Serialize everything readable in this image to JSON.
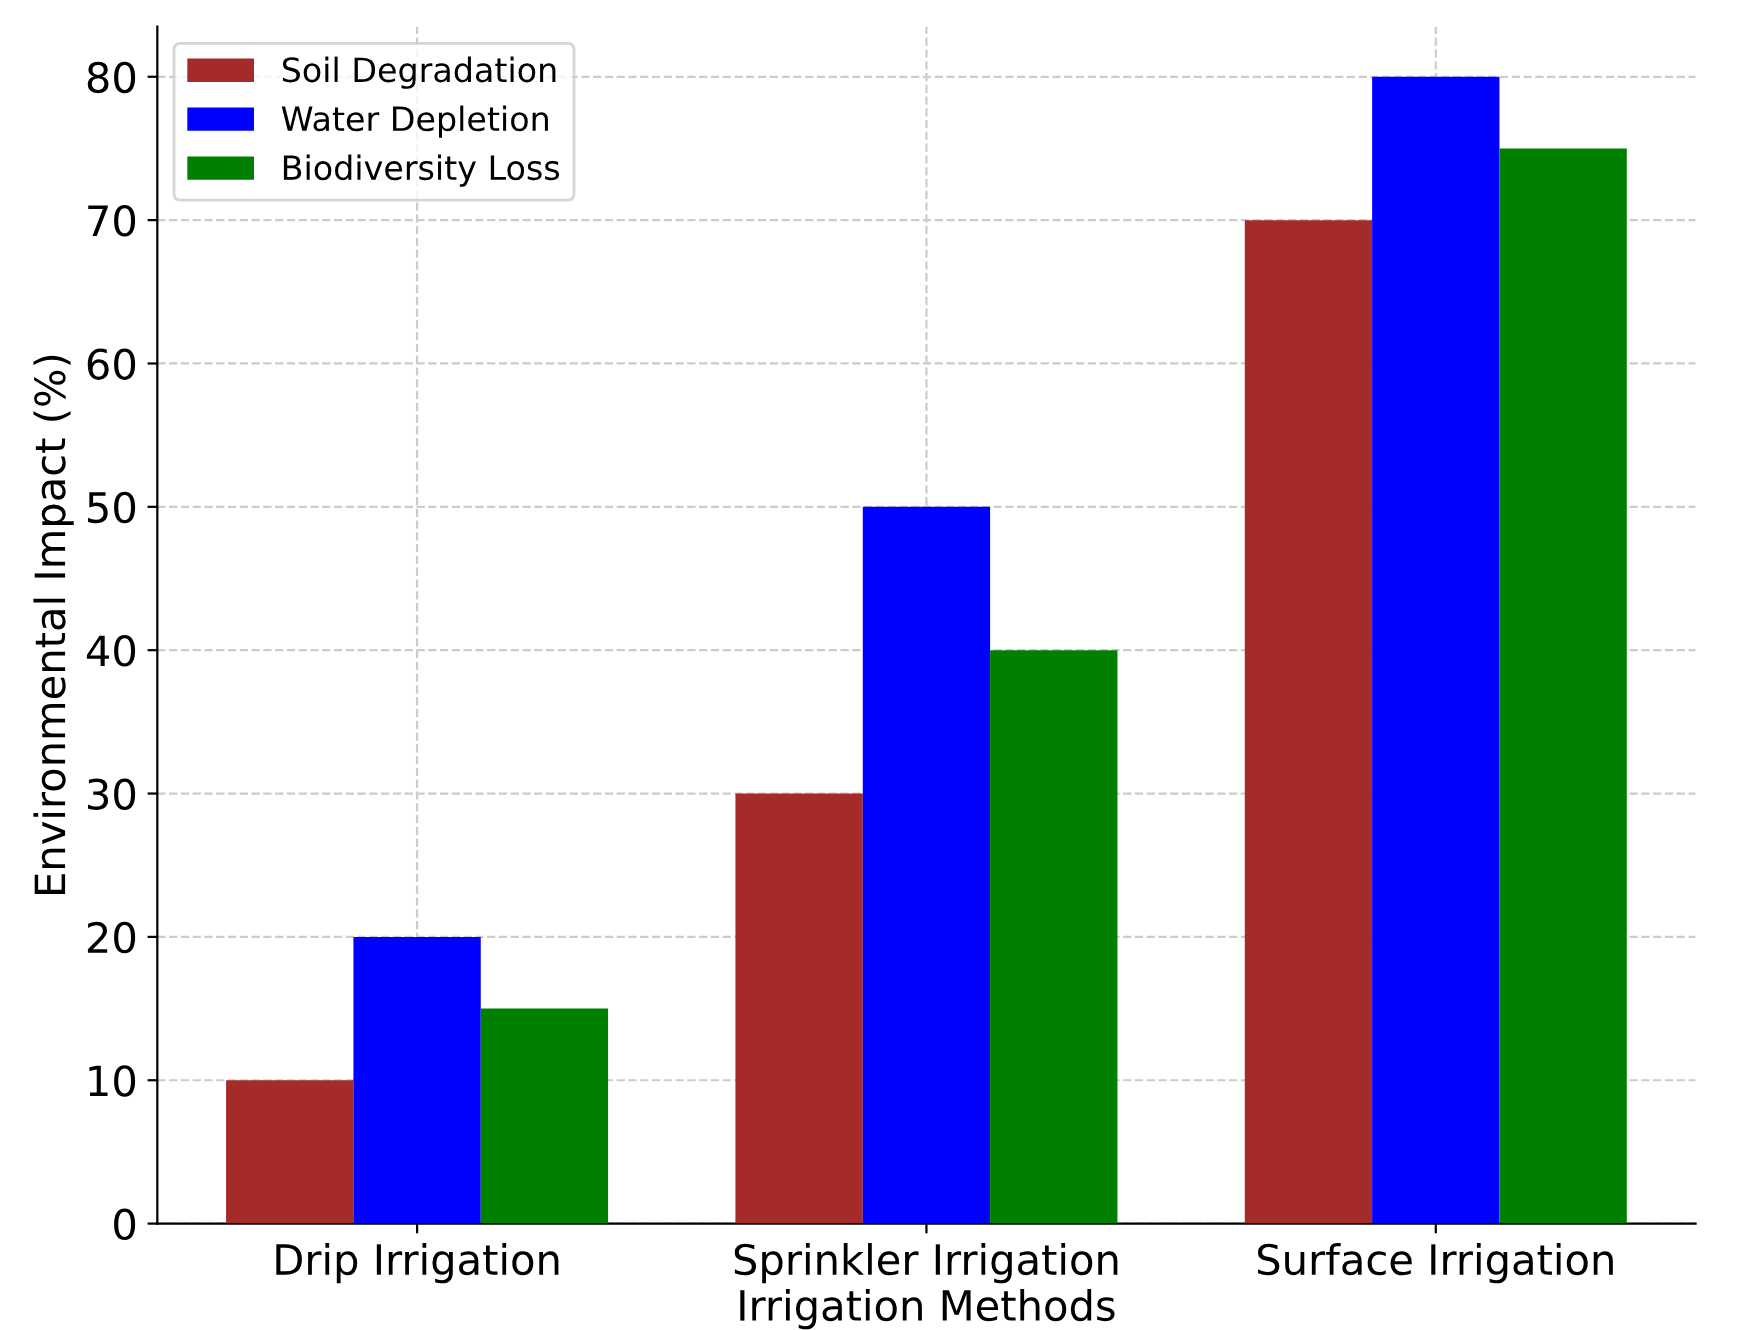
{
  "chart_data": {
    "type": "bar",
    "xlabel": "Irrigation Methods",
    "ylabel": "Environmental Impact (%)",
    "categories": [
      "Drip Irrigation",
      "Sprinkler Irrigation",
      "Surface Irrigation"
    ],
    "series": [
      {
        "name": "Soil Degradation",
        "color": "#a52a2a",
        "values": [
          10,
          30,
          70
        ]
      },
      {
        "name": "Water Depletion",
        "color": "#0000ff",
        "values": [
          20,
          50,
          80
        ]
      },
      {
        "name": "Biodiversity Loss",
        "color": "#008000",
        "values": [
          15,
          40,
          75
        ]
      }
    ],
    "ylim": [
      0,
      83.5
    ],
    "yticks": [
      0,
      10,
      20,
      30,
      40,
      50,
      60,
      70,
      80
    ],
    "grid": true,
    "legend": "top left"
  }
}
